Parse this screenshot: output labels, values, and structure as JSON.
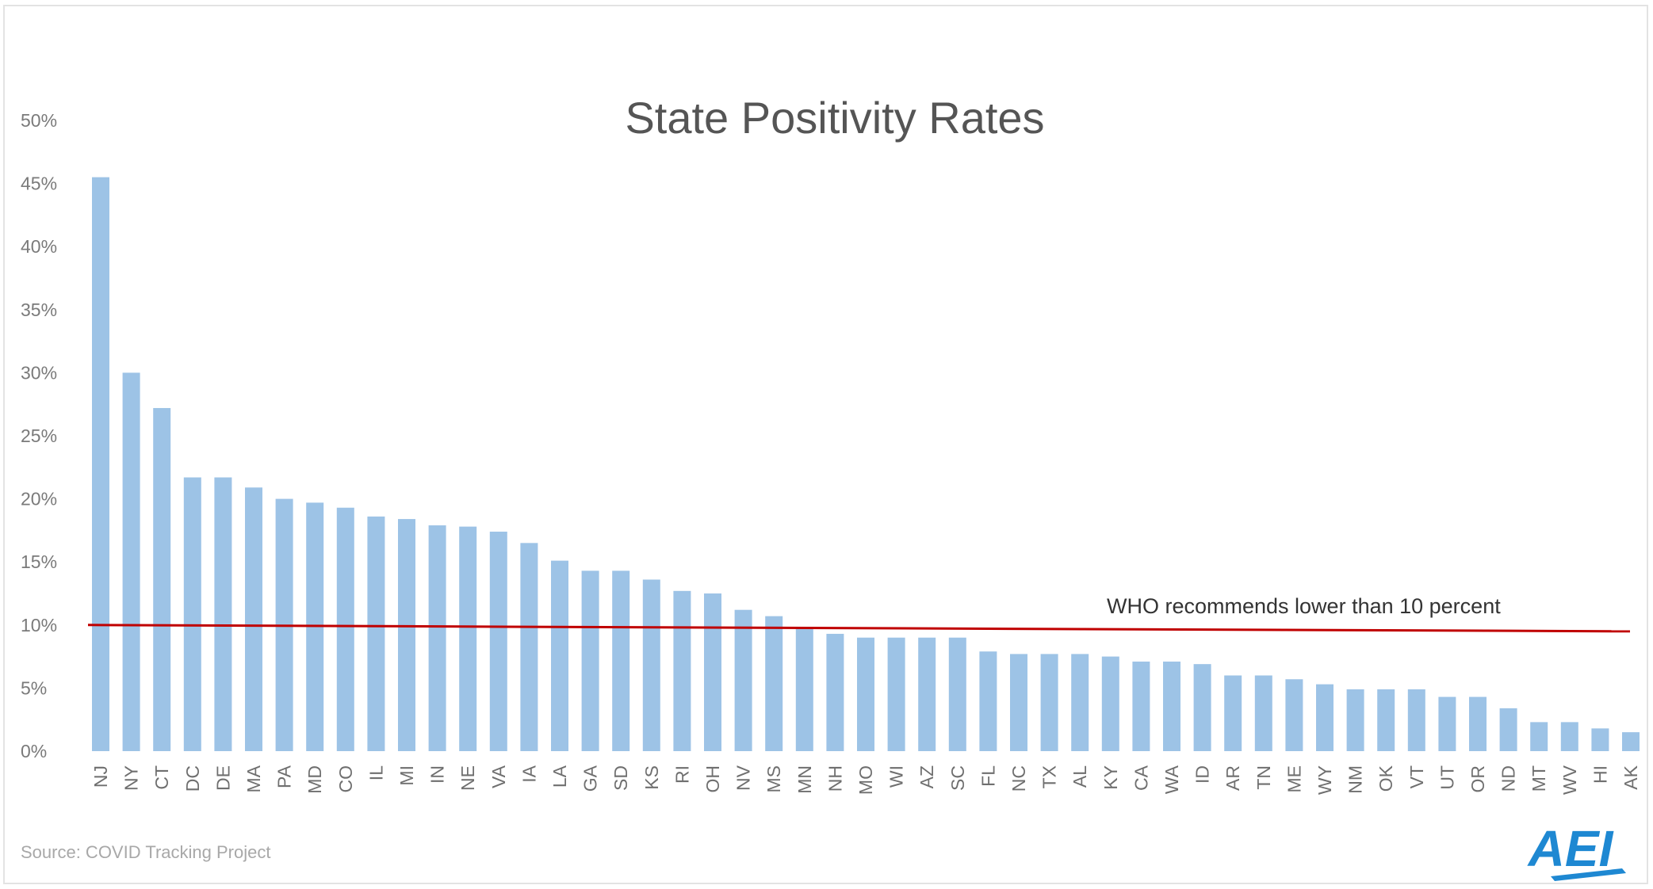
{
  "chart_data": {
    "type": "bar",
    "title": "State Positivity Rates",
    "xlabel": "",
    "ylabel": "",
    "ylim": [
      0,
      50
    ],
    "y_ticks": [
      "0%",
      "5%",
      "10%",
      "15%",
      "20%",
      "25%",
      "30%",
      "35%",
      "40%",
      "45%",
      "50%"
    ],
    "grid": false,
    "categories": [
      "NJ",
      "NY",
      "CT",
      "DC",
      "DE",
      "MA",
      "PA",
      "MD",
      "CO",
      "IL",
      "MI",
      "IN",
      "NE",
      "VA",
      "IA",
      "LA",
      "GA",
      "SD",
      "KS",
      "RI",
      "OH",
      "NV",
      "MS",
      "MN",
      "NH",
      "MO",
      "WI",
      "AZ",
      "SC",
      "FL",
      "NC",
      "TX",
      "AL",
      "KY",
      "CA",
      "WA",
      "ID",
      "AR",
      "TN",
      "ME",
      "WY",
      "NM",
      "OK",
      "VT",
      "UT",
      "OR",
      "ND",
      "MT",
      "WV",
      "HI",
      "AK"
    ],
    "values": [
      45.5,
      30,
      27.2,
      21.7,
      21.7,
      20.9,
      20,
      19.7,
      19.3,
      18.6,
      18.4,
      17.9,
      17.8,
      17.4,
      16.5,
      15.1,
      14.3,
      14.3,
      13.6,
      12.7,
      12.5,
      11.2,
      10.7,
      9.7,
      9.3,
      9,
      9,
      9,
      9,
      7.9,
      7.7,
      7.7,
      7.7,
      7.5,
      7.1,
      7.1,
      6.9,
      6,
      6,
      5.7,
      5.3,
      4.9,
      4.9,
      4.9,
      4.3,
      4.3,
      3.4,
      2.3,
      2.3,
      1.8,
      1.5
    ],
    "bar_color": "#9dc3e6",
    "reference_line": {
      "label": "WHO recommends lower than 10 percent",
      "value": 10,
      "color": "#c00000"
    },
    "source": "Source: COVID Tracking Project",
    "logo": "AEI",
    "logo_color": "#1e88d2"
  }
}
